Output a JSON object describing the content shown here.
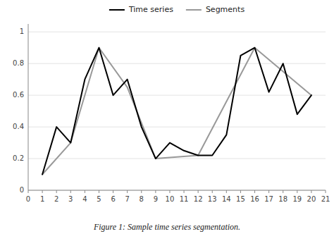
{
  "chart_data": {
    "type": "line",
    "caption": "Figure 1: Sample time series segmentation.",
    "series": [
      {
        "name": "Time series",
        "color": "#000000",
        "x": [
          1,
          2,
          3,
          4,
          5,
          6,
          7,
          8,
          9,
          10,
          11,
          12,
          13,
          14,
          15,
          16,
          17,
          18,
          19,
          20
        ],
        "values": [
          0.1,
          0.4,
          0.3,
          0.7,
          0.9,
          0.6,
          0.7,
          0.4,
          0.2,
          0.3,
          0.25,
          0.22,
          0.22,
          0.35,
          0.85,
          0.9,
          0.62,
          0.8,
          0.48,
          0.6
        ]
      },
      {
        "name": "Segments",
        "color": "#999999",
        "x": [
          1,
          3,
          5,
          7,
          9,
          12,
          16,
          18,
          20
        ],
        "values": [
          0.1,
          0.3,
          0.9,
          0.65,
          0.2,
          0.22,
          0.9,
          0.75,
          0.6
        ]
      }
    ],
    "xlim": [
      0,
      21
    ],
    "ylim": [
      0,
      1.05
    ],
    "xticks": [
      0,
      1,
      2,
      3,
      4,
      5,
      6,
      7,
      8,
      9,
      10,
      11,
      12,
      13,
      14,
      15,
      16,
      17,
      18,
      19,
      20,
      21
    ],
    "yticks": [
      0,
      0.2,
      0.4,
      0.6,
      0.8,
      1
    ],
    "grid": true,
    "legend": "top"
  }
}
